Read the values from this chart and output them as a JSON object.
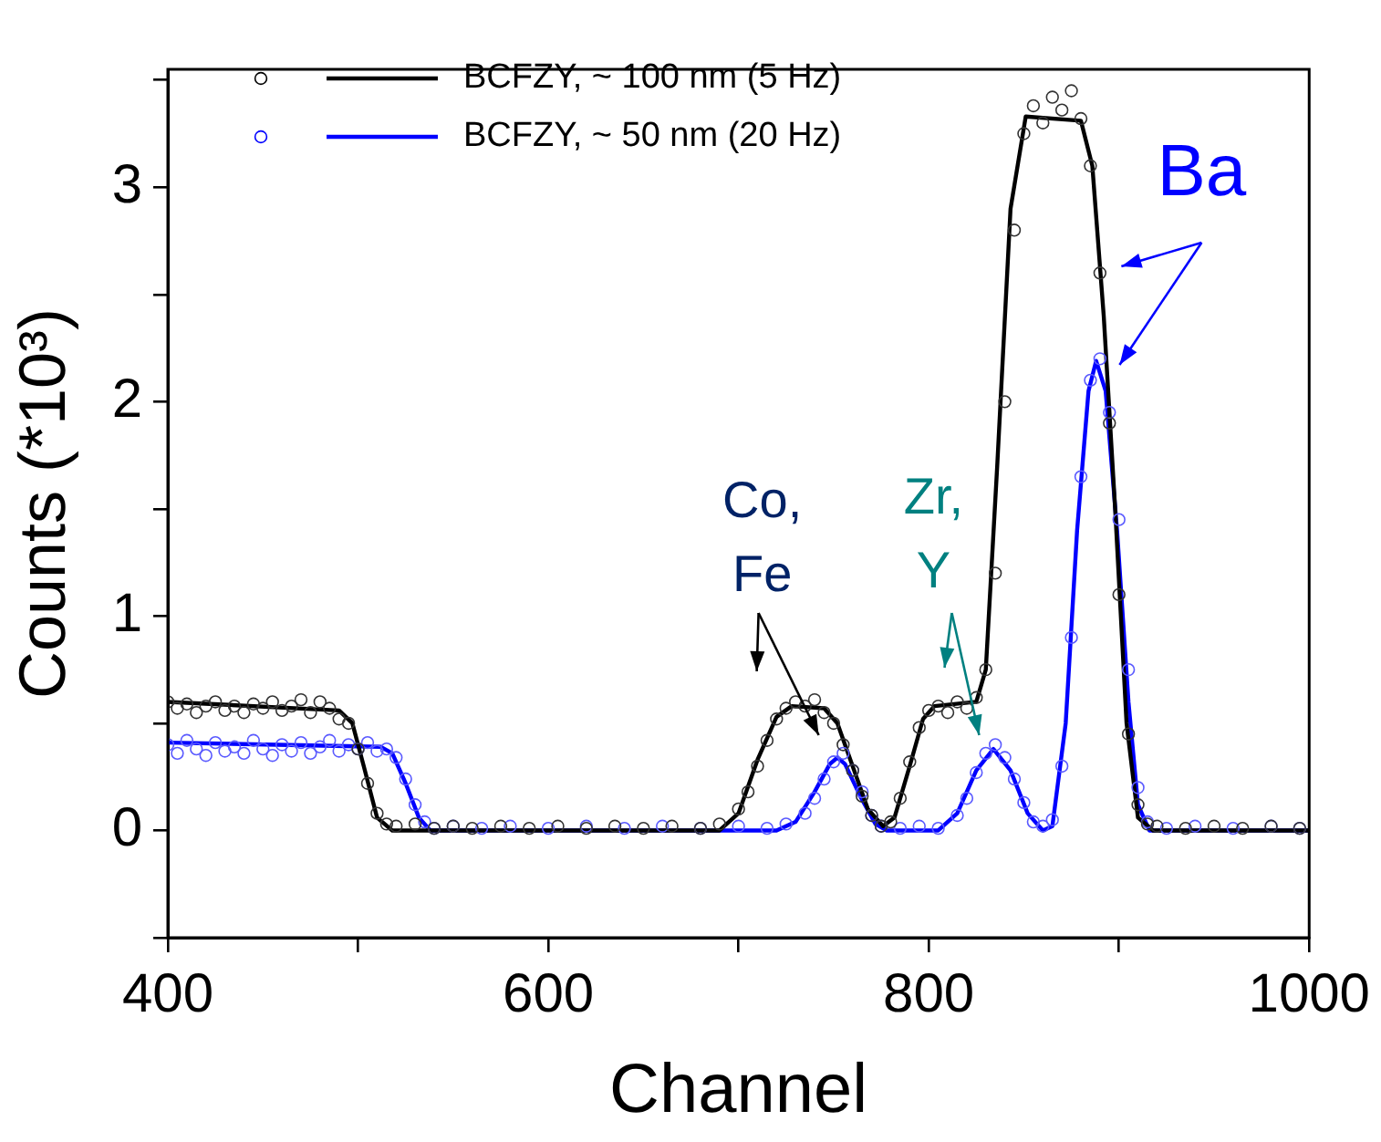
{
  "chart_data": {
    "type": "line",
    "xlabel": "Channel",
    "ylabel": "Counts (*10³)",
    "xlim": [
      400,
      1000
    ],
    "xticks": [
      400,
      {
        "value": 500,
        "label": null
      },
      600,
      {
        "value": 700,
        "label": null
      },
      800,
      {
        "value": 900,
        "label": null
      },
      1000
    ],
    "ylim": [
      -0.5,
      3.55
    ],
    "yticks": [
      {
        "value": -0.5,
        "label": null
      },
      0,
      {
        "value": 0.5,
        "label": null
      },
      1,
      {
        "value": 1.5,
        "label": null
      },
      2,
      {
        "value": 2.5,
        "label": null
      },
      3,
      {
        "value": 3.5,
        "label": null
      }
    ],
    "grid": false,
    "legend": "top left",
    "series": [
      {
        "type": "scatter",
        "marker": "circle",
        "color": "#333333",
        "x": [
          400,
          405,
          410,
          415,
          420,
          425,
          430,
          435,
          440,
          445,
          450,
          455,
          460,
          465,
          470,
          475,
          480,
          485,
          490,
          495,
          500,
          505,
          510,
          515,
          520,
          530,
          540,
          550,
          560,
          575,
          590,
          605,
          620,
          635,
          650,
          665,
          680,
          690,
          700,
          705,
          710,
          715,
          720,
          725,
          730,
          735,
          740,
          745,
          750,
          755,
          760,
          765,
          770,
          775,
          780,
          785,
          790,
          795,
          800,
          805,
          810,
          815,
          820,
          825,
          830,
          835,
          840,
          845,
          850,
          855,
          860,
          865,
          870,
          875,
          880,
          885,
          890,
          895,
          900,
          905,
          910,
          915,
          920,
          935,
          950,
          965,
          980,
          995
        ],
        "values": [
          0.6,
          0.57,
          0.59,
          0.55,
          0.58,
          0.6,
          0.56,
          0.58,
          0.55,
          0.59,
          0.57,
          0.6,
          0.56,
          0.58,
          0.61,
          0.55,
          0.6,
          0.57,
          0.52,
          0.5,
          0.38,
          0.22,
          0.08,
          0.03,
          0.02,
          0.03,
          0.01,
          0.02,
          0.01,
          0.02,
          0.01,
          0.02,
          0.01,
          0.02,
          0.01,
          0.02,
          0.01,
          0.03,
          0.1,
          0.18,
          0.3,
          0.42,
          0.52,
          0.57,
          0.6,
          0.58,
          0.61,
          0.55,
          0.5,
          0.4,
          0.28,
          0.16,
          0.07,
          0.02,
          0.04,
          0.15,
          0.32,
          0.48,
          0.56,
          0.58,
          0.55,
          0.6,
          0.57,
          0.62,
          0.75,
          1.2,
          2.0,
          2.8,
          3.25,
          3.38,
          3.3,
          3.42,
          3.36,
          3.45,
          3.32,
          3.1,
          2.6,
          1.9,
          1.1,
          0.45,
          0.12,
          0.03,
          0.02,
          0.01,
          0.02,
          0.01,
          0.02,
          0.01
        ]
      },
      {
        "type": "scatter",
        "marker": "circle",
        "color": "#5a5aff",
        "x": [
          400,
          405,
          410,
          415,
          420,
          425,
          430,
          435,
          440,
          445,
          450,
          455,
          460,
          465,
          470,
          475,
          480,
          485,
          490,
          495,
          500,
          505,
          510,
          515,
          520,
          525,
          530,
          535,
          540,
          550,
          565,
          580,
          600,
          620,
          640,
          660,
          680,
          700,
          715,
          725,
          735,
          740,
          745,
          750,
          755,
          760,
          765,
          770,
          775,
          785,
          795,
          805,
          815,
          820,
          825,
          830,
          835,
          840,
          845,
          850,
          855,
          860,
          865,
          870,
          875,
          880,
          885,
          890,
          895,
          900,
          905,
          910,
          915,
          925,
          940,
          960,
          980,
          995
        ],
        "values": [
          0.4,
          0.36,
          0.42,
          0.38,
          0.35,
          0.41,
          0.37,
          0.39,
          0.36,
          0.42,
          0.38,
          0.35,
          0.4,
          0.37,
          0.41,
          0.36,
          0.39,
          0.42,
          0.37,
          0.4,
          0.38,
          0.41,
          0.37,
          0.38,
          0.34,
          0.24,
          0.12,
          0.04,
          0.01,
          0.02,
          0.01,
          0.02,
          0.01,
          0.02,
          0.01,
          0.02,
          0.01,
          0.02,
          0.01,
          0.03,
          0.08,
          0.15,
          0.24,
          0.32,
          0.36,
          0.28,
          0.18,
          0.07,
          0.02,
          0.01,
          0.02,
          0.01,
          0.07,
          0.15,
          0.27,
          0.36,
          0.4,
          0.34,
          0.24,
          0.13,
          0.04,
          0.02,
          0.05,
          0.3,
          0.9,
          1.65,
          2.1,
          2.2,
          1.95,
          1.45,
          0.75,
          0.2,
          0.04,
          0.01,
          0.02,
          0.01,
          0.02,
          0.01
        ]
      },
      {
        "name": "BCFZY, ~ 100 nm (5 Hz)",
        "marker": "none",
        "line_style": "solid",
        "color": "#000000",
        "x": [
          400,
          490,
          497,
          503,
          510,
          518,
          690,
          700,
          710,
          720,
          728,
          745,
          752,
          760,
          768,
          776,
          782,
          790,
          797,
          803,
          825,
          830,
          836,
          843,
          851,
          880,
          886,
          892,
          898,
          904,
          910,
          918,
          1000
        ],
        "values": [
          0.6,
          0.56,
          0.5,
          0.3,
          0.06,
          0.0,
          0.0,
          0.08,
          0.33,
          0.53,
          0.58,
          0.57,
          0.5,
          0.3,
          0.1,
          0.02,
          0.06,
          0.3,
          0.52,
          0.58,
          0.6,
          0.75,
          1.7,
          2.9,
          3.33,
          3.31,
          3.1,
          2.4,
          1.5,
          0.5,
          0.06,
          0.0,
          0.0
        ]
      },
      {
        "name": "BCFZY, ~ 50 nm (20 Hz)",
        "marker": "none",
        "line_style": "solid",
        "color": "#0000ff",
        "x": [
          400,
          512,
          518,
          525,
          532,
          538,
          720,
          730,
          740,
          748,
          752,
          756,
          764,
          772,
          778,
          805,
          815,
          825,
          834,
          843,
          852,
          860,
          865,
          872,
          878,
          884,
          888,
          893,
          899,
          905,
          910,
          916,
          1000
        ],
        "values": [
          0.41,
          0.39,
          0.36,
          0.22,
          0.06,
          0.0,
          0.0,
          0.04,
          0.18,
          0.31,
          0.34,
          0.31,
          0.16,
          0.03,
          0.0,
          0.0,
          0.08,
          0.28,
          0.38,
          0.28,
          0.08,
          0.0,
          0.02,
          0.5,
          1.4,
          2.05,
          2.19,
          2.05,
          1.4,
          0.6,
          0.12,
          0.0,
          0.0
        ]
      }
    ],
    "annotations": [
      "Ba",
      "Co,\nFe",
      "Zr,\nY"
    ]
  }
}
